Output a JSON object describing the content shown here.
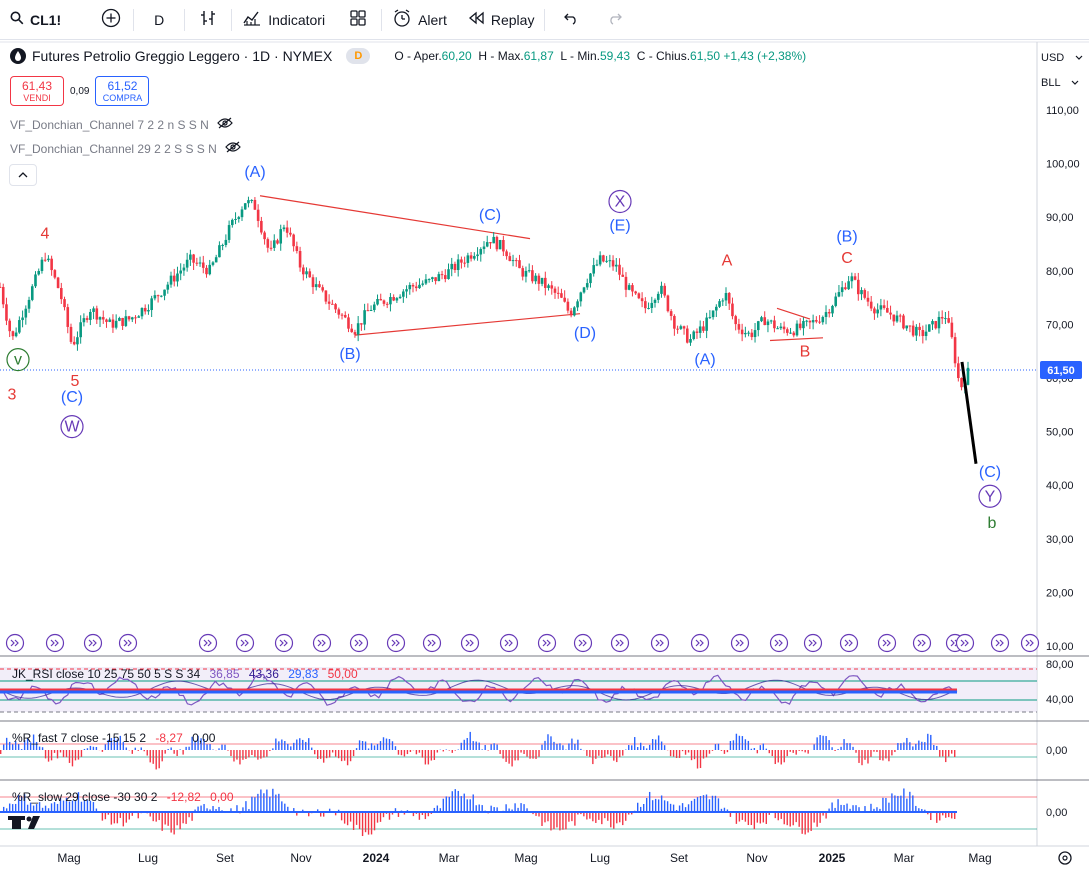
{
  "toolbar": {
    "symbol": "CL1!",
    "interval": "D",
    "indicators_label": "Indicatori",
    "alert_label": "Alert",
    "replay_label": "Replay"
  },
  "legend": {
    "title": "Futures Petrolio Greggio Leggero · 1D · NYMEX",
    "badge": "D",
    "open_label": "O - Aper.",
    "open": "60,20",
    "high_label": "H - Max.",
    "high": "61,87",
    "low_label": "L - Min.",
    "low": "59,43",
    "close_label": "C - Chius.",
    "close": "61,50",
    "change": "+1,43 (+2,38%)"
  },
  "trade": {
    "sell_price": "61,43",
    "sell_label": "VENDI",
    "spread": "0,09",
    "buy_price": "61,52",
    "buy_label": "COMPRA"
  },
  "indicators": {
    "donchian_fast": "VF_Donchian_Channel 7 2 2 n S S N",
    "donchian_slow": "VF_Donchian_Channel 29 2 2 S S S N",
    "rsi_label": "JK_RSI close 10 25 75 50 5 S S 34",
    "rsi_v1": "36,85",
    "rsi_v2": "43,36",
    "rsi_v3": "29,83",
    "rsi_v4": "50,00",
    "wr_fast_label": "%R_fast 7 close -15 15 2",
    "wr_fast_v1": "-8,27",
    "wr_fast_v2": "0,00",
    "wr_slow_label": "%R_slow 29 close -30 30 2",
    "wr_slow_v1": "-12,82",
    "wr_slow_v2": "0,00"
  },
  "axis": {
    "currency": "USD",
    "unit": "BLL",
    "last_price_tag": "61,50",
    "rsi_ticks": [
      "80,00",
      "40,00"
    ],
    "wr_fast_tick": "0,00",
    "wr_slow_tick": "0,00"
  },
  "colors": {
    "up": "#089981",
    "down": "#f23645",
    "wave_blue": "#2962ff",
    "wave_red": "#e53935",
    "wave_purple": "#673ab7",
    "wave_green": "#2e7d32",
    "trend_line": "#e53935"
  },
  "chart_data": {
    "type": "candlestick",
    "title": "Futures Petrolio Greggio Leggero · 1D · NYMEX",
    "ylim": [
      10,
      110
    ],
    "y_ticks": [
      110,
      100,
      90,
      80,
      70,
      60,
      50,
      40,
      30,
      20,
      10
    ],
    "y_tick_labels": [
      "110,00",
      "100,00",
      "90,00",
      "80,00",
      "70,00",
      "60,00",
      "50,00",
      "40,00",
      "30,00",
      "20,00",
      "10,00"
    ],
    "x_ticks": [
      "Mag",
      "Lug",
      "Set",
      "Nov",
      "2024",
      "Mar",
      "Mag",
      "Lug",
      "Set",
      "Nov",
      "2025",
      "Mar",
      "Mag"
    ],
    "last_price": 61.5,
    "price_path": [
      {
        "t": 0,
        "p": 77
      },
      {
        "t": 0.012,
        "p": 67
      },
      {
        "t": 0.022,
        "p": 72
      },
      {
        "t": 0.035,
        "p": 78
      },
      {
        "t": 0.045,
        "p": 83
      },
      {
        "t": 0.06,
        "p": 76
      },
      {
        "t": 0.072,
        "p": 66
      },
      {
        "t": 0.09,
        "p": 73
      },
      {
        "t": 0.11,
        "p": 70
      },
      {
        "t": 0.13,
        "p": 71
      },
      {
        "t": 0.15,
        "p": 74
      },
      {
        "t": 0.17,
        "p": 78
      },
      {
        "t": 0.19,
        "p": 82
      },
      {
        "t": 0.21,
        "p": 80
      },
      {
        "t": 0.23,
        "p": 88
      },
      {
        "t": 0.245,
        "p": 93
      },
      {
        "t": 0.255,
        "p": 92
      },
      {
        "t": 0.27,
        "p": 83
      },
      {
        "t": 0.285,
        "p": 89
      },
      {
        "t": 0.3,
        "p": 81
      },
      {
        "t": 0.32,
        "p": 76
      },
      {
        "t": 0.34,
        "p": 72
      },
      {
        "t": 0.355,
        "p": 69
      },
      {
        "t": 0.37,
        "p": 73
      },
      {
        "t": 0.39,
        "p": 75
      },
      {
        "t": 0.41,
        "p": 77
      },
      {
        "t": 0.43,
        "p": 78
      },
      {
        "t": 0.45,
        "p": 80
      },
      {
        "t": 0.47,
        "p": 83
      },
      {
        "t": 0.49,
        "p": 86
      },
      {
        "t": 0.505,
        "p": 84
      },
      {
        "t": 0.52,
        "p": 80
      },
      {
        "t": 0.54,
        "p": 78
      },
      {
        "t": 0.56,
        "p": 75
      },
      {
        "t": 0.57,
        "p": 72
      },
      {
        "t": 0.585,
        "p": 78
      },
      {
        "t": 0.6,
        "p": 82
      },
      {
        "t": 0.615,
        "p": 81
      },
      {
        "t": 0.63,
        "p": 76
      },
      {
        "t": 0.645,
        "p": 73
      },
      {
        "t": 0.66,
        "p": 77
      },
      {
        "t": 0.675,
        "p": 70
      },
      {
        "t": 0.69,
        "p": 67
      },
      {
        "t": 0.71,
        "p": 71
      },
      {
        "t": 0.725,
        "p": 76
      },
      {
        "t": 0.735,
        "p": 70
      },
      {
        "t": 0.75,
        "p": 68
      },
      {
        "t": 0.765,
        "p": 71
      },
      {
        "t": 0.78,
        "p": 69
      },
      {
        "t": 0.795,
        "p": 69
      },
      {
        "t": 0.81,
        "p": 70
      },
      {
        "t": 0.825,
        "p": 72
      },
      {
        "t": 0.84,
        "p": 76
      },
      {
        "t": 0.85,
        "p": 79
      },
      {
        "t": 0.86,
        "p": 76
      },
      {
        "t": 0.875,
        "p": 73
      },
      {
        "t": 0.89,
        "p": 72
      },
      {
        "t": 0.905,
        "p": 70
      },
      {
        "t": 0.92,
        "p": 68
      },
      {
        "t": 0.935,
        "p": 70
      },
      {
        "t": 0.945,
        "p": 72
      },
      {
        "t": 0.952,
        "p": 67
      },
      {
        "t": 0.96,
        "p": 58
      },
      {
        "t": 0.968,
        "p": 61
      }
    ],
    "projection": [
      {
        "t": 0.968,
        "p": 63
      },
      {
        "t": 1.0,
        "p": 44
      }
    ],
    "trend_lines": [
      {
        "from": {
          "t": 0.26,
          "p": 94
        },
        "to": {
          "t": 0.53,
          "p": 86
        }
      },
      {
        "from": {
          "t": 0.355,
          "p": 68
        },
        "to": {
          "t": 0.58,
          "p": 72
        }
      },
      {
        "from": {
          "t": 0.777,
          "p": 73
        },
        "to": {
          "t": 0.81,
          "p": 71
        }
      },
      {
        "from": {
          "t": 0.77,
          "p": 67
        },
        "to": {
          "t": 0.823,
          "p": 67.5
        }
      }
    ],
    "wave_labels": [
      {
        "text": "4",
        "t": 0.045,
        "p": 86,
        "color": "red"
      },
      {
        "text": "v",
        "t": 0.018,
        "p": 62.5,
        "color": "green",
        "circle": true
      },
      {
        "text": "5",
        "t": 0.075,
        "p": 58.5,
        "color": "red"
      },
      {
        "text": "3",
        "t": 0.012,
        "p": 56,
        "color": "red"
      },
      {
        "text": "(C)",
        "t": 0.072,
        "p": 55.5,
        "color": "blue"
      },
      {
        "text": "W",
        "t": 0.072,
        "p": 50,
        "color": "purple",
        "circle": true
      },
      {
        "text": "(A)",
        "t": 0.255,
        "p": 97.5,
        "color": "blue"
      },
      {
        "text": "(B)",
        "t": 0.35,
        "p": 63.5,
        "color": "blue"
      },
      {
        "text": "(C)",
        "t": 0.49,
        "p": 89.5,
        "color": "blue"
      },
      {
        "text": "X",
        "t": 0.62,
        "p": 92,
        "color": "purple",
        "circle": true
      },
      {
        "text": "(E)",
        "t": 0.62,
        "p": 87.5,
        "color": "blue"
      },
      {
        "text": "(D)",
        "t": 0.585,
        "p": 67.5,
        "color": "blue"
      },
      {
        "text": "(A)",
        "t": 0.705,
        "p": 62.5,
        "color": "blue"
      },
      {
        "text": "A",
        "t": 0.727,
        "p": 81,
        "color": "red"
      },
      {
        "text": "B",
        "t": 0.805,
        "p": 64,
        "color": "red"
      },
      {
        "text": "(B)",
        "t": 0.847,
        "p": 85.5,
        "color": "blue"
      },
      {
        "text": "C",
        "t": 0.847,
        "p": 81.5,
        "color": "red"
      },
      {
        "text": "(C)",
        "t": 0.99,
        "p": 41.5,
        "color": "blue"
      },
      {
        "text": "Y",
        "t": 0.99,
        "p": 37,
        "color": "purple",
        "circle": true
      },
      {
        "text": "b",
        "t": 0.992,
        "p": 32,
        "color": "green"
      }
    ]
  }
}
